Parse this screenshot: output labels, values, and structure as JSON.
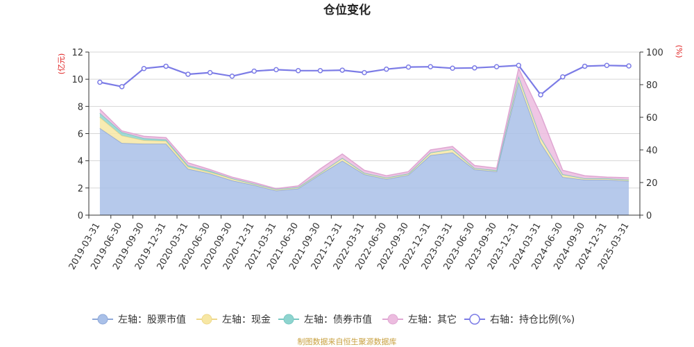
{
  "chart_data": {
    "type": "area",
    "title": "仓位变化",
    "left_unit": "(亿元)",
    "right_unit": "(%)",
    "left_ylim": [
      0,
      12
    ],
    "left_ticks": [
      "0",
      "2",
      "4",
      "6",
      "8",
      "10",
      "12"
    ],
    "right_ylim": [
      0,
      100
    ],
    "right_ticks": [
      "0",
      "20",
      "40",
      "60",
      "80",
      "100"
    ],
    "grid": true,
    "legend_position": "bottom",
    "categories": [
      "2019-03-31",
      "2019-06-30",
      "2019-09-30",
      "2019-12-31",
      "2020-03-31",
      "2020-06-30",
      "2020-09-30",
      "2020-12-31",
      "2021-03-31",
      "2021-06-30",
      "2021-09-30",
      "2021-12-31",
      "2022-03-31",
      "2022-06-30",
      "2022-09-30",
      "2022-12-31",
      "2023-03-31",
      "2023-06-30",
      "2023-09-30",
      "2023-12-31",
      "2024-03-31",
      "2024-06-30",
      "2024-09-30",
      "2024-12-31",
      "2025-03-31"
    ],
    "stacked_series": [
      {
        "name": "左轴：股票市值",
        "color": "#a9c0e8",
        "line": "#8ea8d8",
        "values": [
          6.4,
          5.3,
          5.25,
          5.25,
          3.4,
          3.05,
          2.55,
          2.2,
          1.8,
          1.95,
          3.0,
          4.0,
          3.0,
          2.65,
          2.95,
          4.4,
          4.6,
          3.35,
          3.2,
          9.8,
          5.3,
          2.8,
          2.6,
          2.6,
          2.5
        ]
      },
      {
        "name": "左轴：现金",
        "color": "#f7e7a4",
        "line": "#eed88a",
        "values": [
          0.8,
          0.55,
          0.25,
          0.2,
          0.15,
          0.1,
          0.15,
          0.1,
          0.1,
          0.1,
          0.1,
          0.2,
          0.1,
          0.1,
          0.1,
          0.2,
          0.25,
          0.1,
          0.1,
          0.4,
          0.4,
          0.2,
          0.1,
          0.1,
          0.1
        ]
      },
      {
        "name": "左轴：债券市值",
        "color": "#8ed4cf",
        "line": "#78c8c2",
        "values": [
          0.3,
          0.25,
          0.15,
          0.1,
          0.1,
          0.1,
          0.0,
          0.0,
          0.0,
          0.0,
          0.0,
          0.0,
          0.0,
          0.0,
          0.0,
          0.0,
          0.0,
          0.0,
          0.0,
          0.0,
          0.0,
          0.0,
          0.0,
          0.0,
          0.0
        ]
      },
      {
        "name": "左轴：其它",
        "color": "#ecbcdf",
        "line": "#dfa6d2",
        "values": [
          0.3,
          0.1,
          0.15,
          0.15,
          0.2,
          0.1,
          0.1,
          0.1,
          0.05,
          0.1,
          0.3,
          0.3,
          0.2,
          0.15,
          0.15,
          0.2,
          0.2,
          0.2,
          0.15,
          0.6,
          1.7,
          0.3,
          0.2,
          0.1,
          0.15
        ]
      }
    ],
    "line_series": {
      "name": "右轴：持仓比例(%)",
      "color": "#7b7be6",
      "values": [
        81.5,
        78.8,
        89.9,
        91.3,
        86.4,
        87.4,
        85.2,
        88.3,
        89.2,
        88.6,
        88.6,
        88.9,
        87.4,
        89.5,
        90.8,
        91.0,
        90.1,
        90.3,
        91.0,
        91.8,
        73.8,
        84.8,
        91.3,
        91.8,
        91.5
      ]
    }
  },
  "source_text": "制图数据来自恒生聚源数据库"
}
